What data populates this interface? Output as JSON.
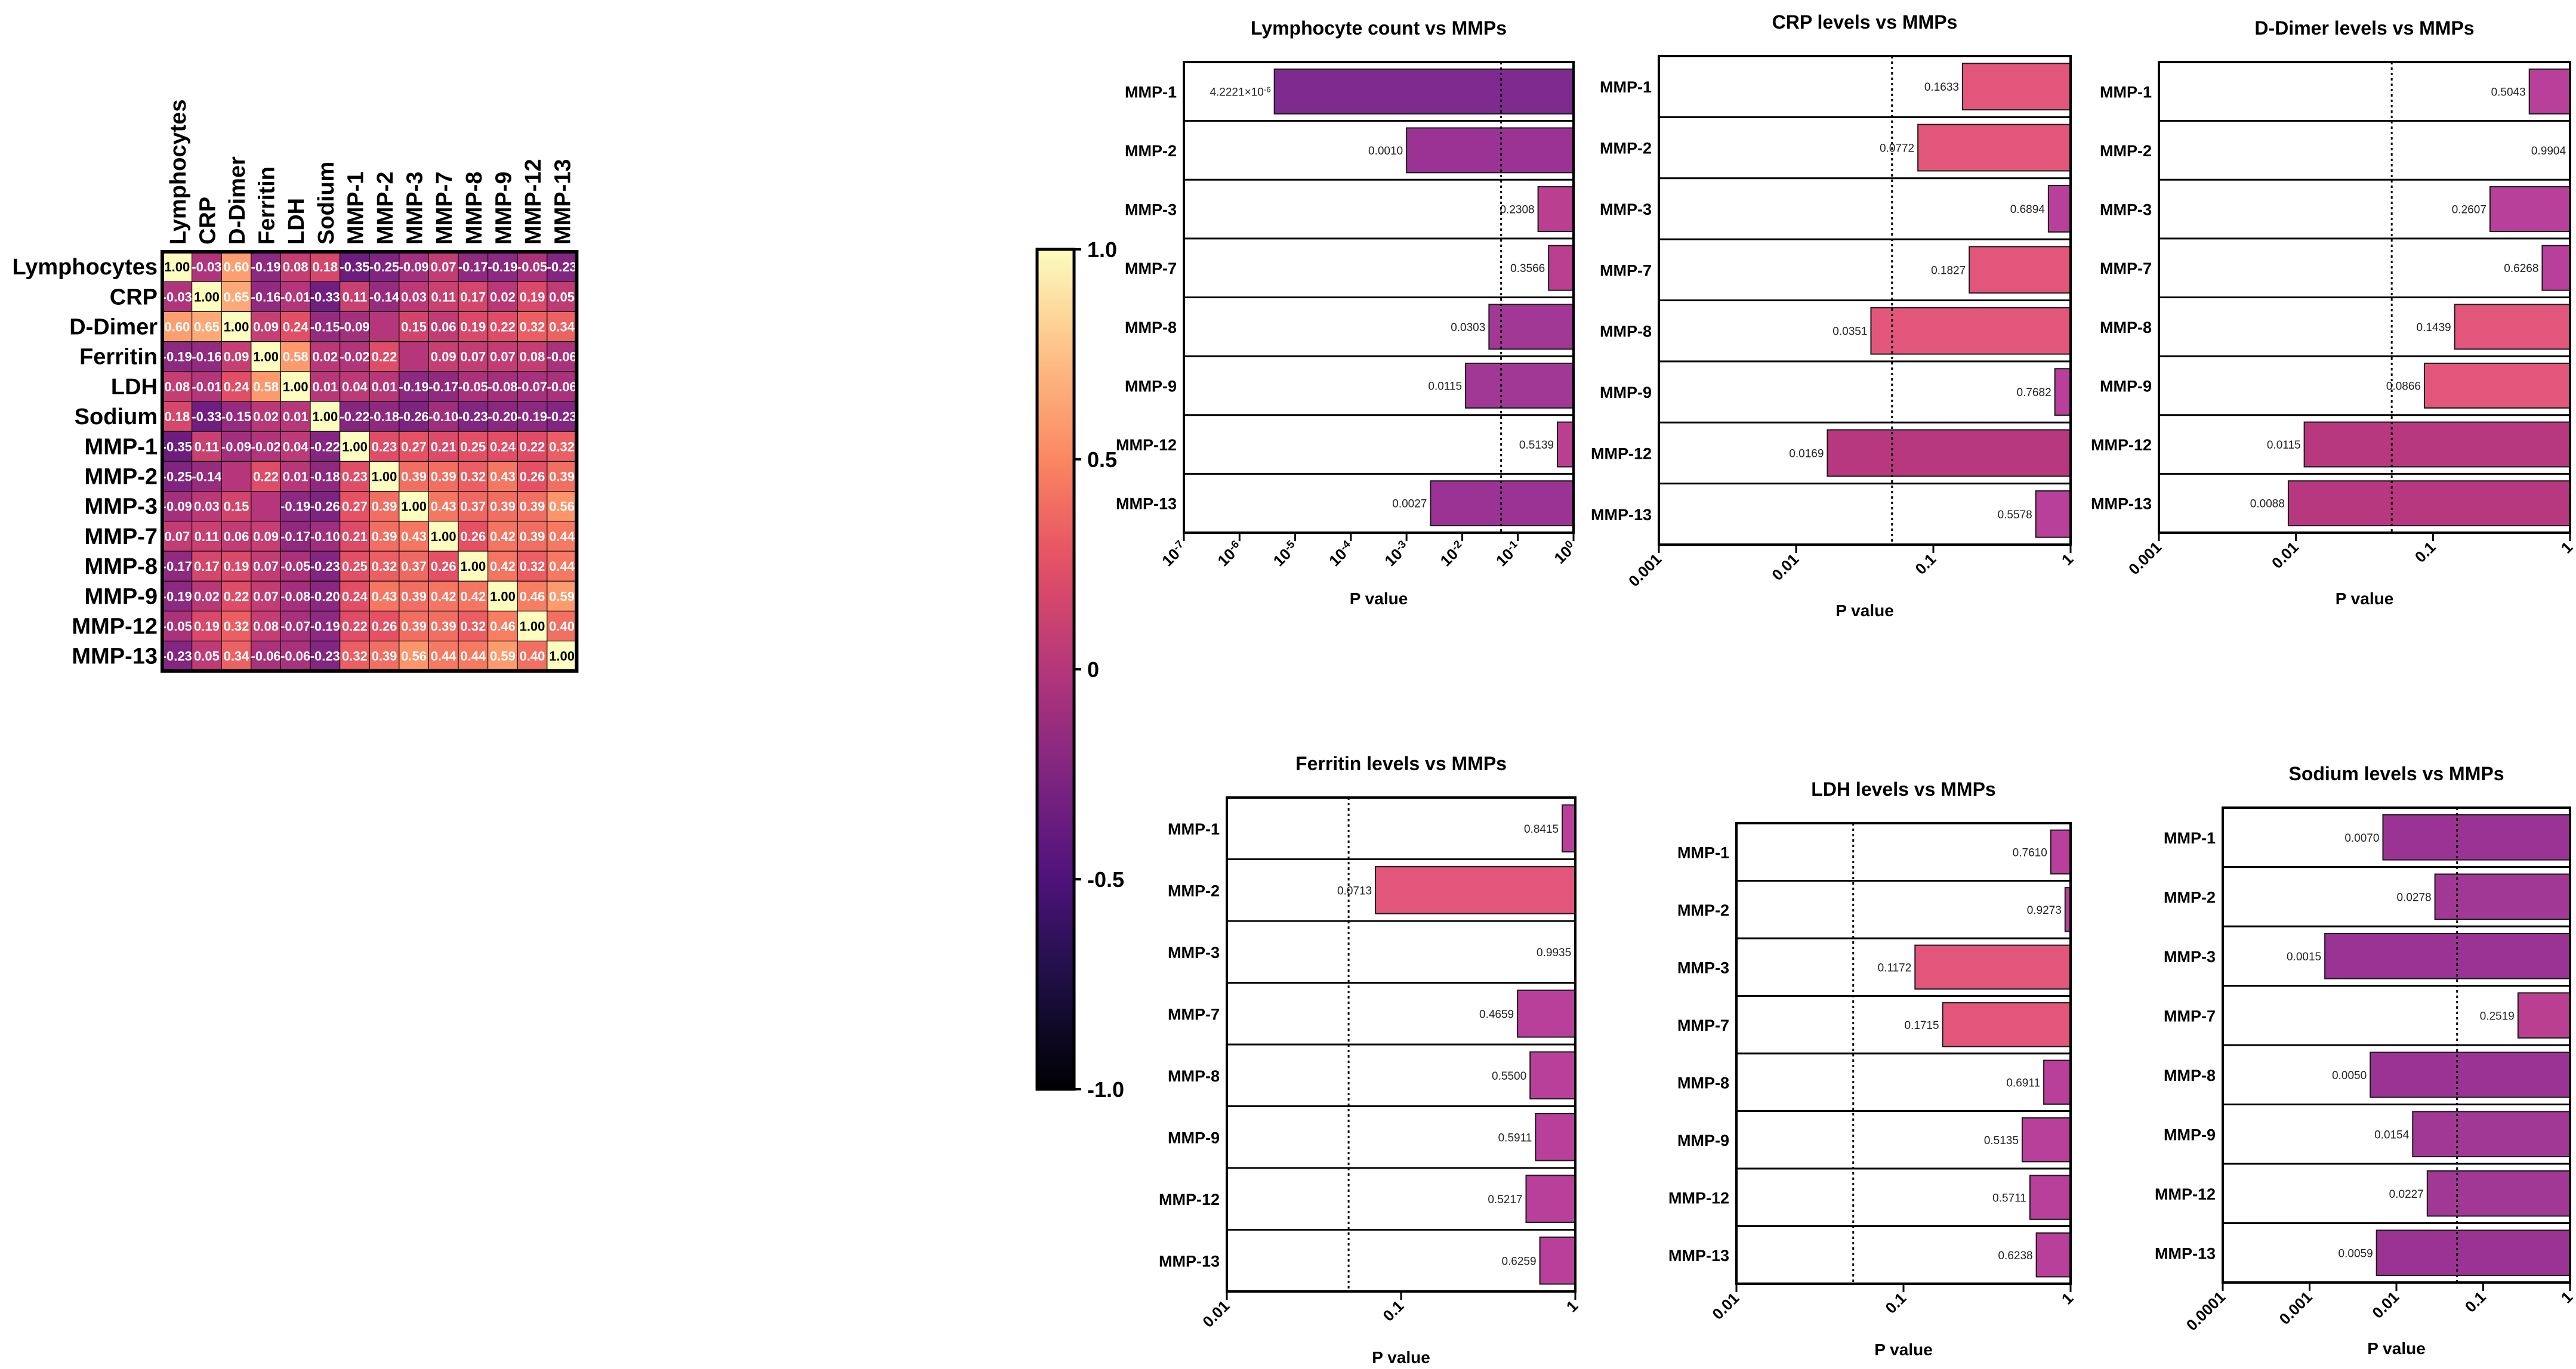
{
  "chart_data": [
    {
      "type": "heatmap",
      "title": "",
      "labels": [
        "Lymphocytes",
        "CRP",
        "D-Dimer",
        "Ferritin",
        "LDH",
        "Sodium",
        "MMP-1",
        "MMP-2",
        "MMP-3",
        "MMP-7",
        "MMP-8",
        "MMP-9",
        "MMP-12",
        "MMP-13"
      ],
      "values": [
        [
          1.0,
          -0.03,
          0.6,
          -0.19,
          0.08,
          0.18,
          -0.35,
          -0.25,
          -0.09,
          0.07,
          -0.17,
          -0.19,
          -0.05,
          -0.23
        ],
        [
          -0.03,
          1.0,
          0.65,
          -0.16,
          -0.01,
          -0.33,
          0.11,
          -0.14,
          0.03,
          0.11,
          0.17,
          0.02,
          0.19,
          0.05
        ],
        [
          0.6,
          0.65,
          1.0,
          0.09,
          0.24,
          -0.15,
          -0.09,
          null,
          0.15,
          0.06,
          0.19,
          0.22,
          0.32,
          0.34
        ],
        [
          -0.19,
          -0.16,
          0.09,
          1.0,
          0.58,
          0.02,
          -0.02,
          0.22,
          null,
          0.09,
          0.07,
          0.07,
          0.08,
          -0.06
        ],
        [
          0.08,
          -0.01,
          0.24,
          0.58,
          1.0,
          0.01,
          0.04,
          0.01,
          -0.19,
          -0.17,
          -0.05,
          -0.08,
          -0.07,
          -0.06
        ],
        [
          0.18,
          -0.33,
          -0.15,
          0.02,
          0.01,
          1.0,
          -0.22,
          -0.18,
          -0.26,
          -0.1,
          -0.23,
          -0.2,
          -0.19,
          -0.23
        ],
        [
          -0.35,
          0.11,
          -0.09,
          -0.02,
          0.04,
          -0.22,
          1.0,
          0.23,
          0.27,
          0.21,
          0.25,
          0.24,
          0.22,
          0.32
        ],
        [
          -0.25,
          -0.14,
          null,
          0.22,
          0.01,
          -0.18,
          0.23,
          1.0,
          0.39,
          0.39,
          0.32,
          0.43,
          0.26,
          0.39
        ],
        [
          -0.09,
          0.03,
          0.15,
          null,
          -0.19,
          -0.26,
          0.27,
          0.39,
          1.0,
          0.43,
          0.37,
          0.39,
          0.39,
          0.56
        ],
        [
          0.07,
          0.11,
          0.06,
          0.09,
          -0.17,
          -0.1,
          0.21,
          0.39,
          0.43,
          1.0,
          0.26,
          0.42,
          0.39,
          0.44
        ],
        [
          -0.17,
          0.17,
          0.19,
          0.07,
          -0.05,
          -0.23,
          0.25,
          0.32,
          0.37,
          0.26,
          1.0,
          0.42,
          0.32,
          0.44
        ],
        [
          -0.19,
          0.02,
          0.22,
          0.07,
          -0.08,
          -0.2,
          0.24,
          0.43,
          0.39,
          0.42,
          0.42,
          1.0,
          0.46,
          0.59
        ],
        [
          -0.05,
          0.19,
          0.32,
          0.08,
          -0.07,
          -0.19,
          0.22,
          0.26,
          0.39,
          0.39,
          0.32,
          0.46,
          1.0,
          0.4
        ],
        [
          -0.23,
          0.05,
          0.34,
          -0.06,
          -0.06,
          -0.23,
          0.32,
          0.39,
          0.56,
          0.44,
          0.44,
          0.59,
          0.4,
          1.0
        ]
      ],
      "colorbar": {
        "min": -1.0,
        "max": 1.0,
        "ticks": [
          "1.0",
          "0.5",
          "0",
          "-0.5",
          "-1.0"
        ]
      }
    },
    {
      "type": "bar",
      "orientation": "horizontal",
      "title": "Lymphocyte count vs MMPs",
      "xlabel": "P value",
      "xscale": "log",
      "xlim": [
        1e-07,
        1
      ],
      "threshold": 0.05,
      "tick_values": [
        1e-07,
        1e-06,
        1e-05,
        0.0001,
        0.001,
        0.01,
        0.1,
        1
      ],
      "tick_labels": [
        "10-7",
        "10-6",
        "10-5",
        "10-4",
        "10-3",
        "10-2",
        "10-1",
        "100"
      ],
      "categories": [
        "MMP-1",
        "MMP-2",
        "MMP-3",
        "MMP-7",
        "MMP-8",
        "MMP-9",
        "MMP-12",
        "MMP-13"
      ],
      "values": [
        4.2221e-06,
        0.001,
        0.2308,
        0.3566,
        0.0303,
        0.0115,
        0.5139,
        0.0027
      ],
      "value_labels": [
        "4.2221×10-6",
        "0.0010",
        "0.2308",
        "0.3566",
        "0.0303",
        "0.0115",
        "0.5139",
        "0.0027"
      ]
    },
    {
      "type": "bar",
      "orientation": "horizontal",
      "title": "CRP levels vs MMPs",
      "xlabel": "P value",
      "xscale": "log",
      "xlim": [
        0.001,
        1
      ],
      "threshold": 0.05,
      "tick_values": [
        0.001,
        0.01,
        0.1,
        1
      ],
      "tick_labels": [
        "0.001",
        "0.01",
        "0.1",
        "1"
      ],
      "categories": [
        "MMP-1",
        "MMP-2",
        "MMP-3",
        "MMP-7",
        "MMP-8",
        "MMP-9",
        "MMP-12",
        "MMP-13"
      ],
      "values": [
        0.1633,
        0.0772,
        0.6894,
        0.1827,
        0.0351,
        0.7682,
        0.0169,
        0.5578
      ],
      "value_labels": [
        "0.1633",
        "0.0772",
        "0.6894",
        "0.1827",
        "0.0351",
        "0.7682",
        "0.0169",
        "0.5578"
      ]
    },
    {
      "type": "bar",
      "orientation": "horizontal",
      "title": "D-Dimer levels vs MMPs",
      "xlabel": "P value",
      "xscale": "log",
      "xlim": [
        0.001,
        1
      ],
      "threshold": 0.05,
      "tick_values": [
        0.001,
        0.01,
        0.1,
        1
      ],
      "tick_labels": [
        "0.001",
        "0.01",
        "0.1",
        "1"
      ],
      "categories": [
        "MMP-1",
        "MMP-2",
        "MMP-3",
        "MMP-7",
        "MMP-8",
        "MMP-9",
        "MMP-12",
        "MMP-13"
      ],
      "values": [
        0.5043,
        0.9904,
        0.2607,
        0.6268,
        0.1439,
        0.0866,
        0.0115,
        0.0088
      ],
      "value_labels": [
        "0.5043",
        "0.9904",
        "0.2607",
        "0.6268",
        "0.1439",
        "0.0866",
        "0.0115",
        "0.0088"
      ]
    },
    {
      "type": "bar",
      "orientation": "horizontal",
      "title": "Ferritin levels vs MMPs",
      "xlabel": "P value",
      "xscale": "log",
      "xlim": [
        0.01,
        1
      ],
      "threshold": 0.05,
      "tick_values": [
        0.01,
        0.1,
        1
      ],
      "tick_labels": [
        "0.01",
        "0.1",
        "1"
      ],
      "categories": [
        "MMP-1",
        "MMP-2",
        "MMP-3",
        "MMP-7",
        "MMP-8",
        "MMP-9",
        "MMP-12",
        "MMP-13"
      ],
      "values": [
        0.8415,
        0.0713,
        0.9935,
        0.4659,
        0.55,
        0.5911,
        0.5217,
        0.6259
      ],
      "value_labels": [
        "0.8415",
        "0.0713",
        "0.9935",
        "0.4659",
        "0.5500",
        "0.5911",
        "0.5217",
        "0.6259"
      ]
    },
    {
      "type": "bar",
      "orientation": "horizontal",
      "title": "LDH levels vs MMPs",
      "xlabel": "P value",
      "xscale": "log",
      "xlim": [
        0.01,
        1
      ],
      "threshold": 0.05,
      "tick_values": [
        0.01,
        0.1,
        1
      ],
      "tick_labels": [
        "0.01",
        "0.1",
        "1"
      ],
      "categories": [
        "MMP-1",
        "MMP-2",
        "MMP-3",
        "MMP-7",
        "MMP-8",
        "MMP-9",
        "MMP-12",
        "MMP-13"
      ],
      "values": [
        0.761,
        0.9273,
        0.1172,
        0.1715,
        0.6911,
        0.5135,
        0.5711,
        0.6238
      ],
      "value_labels": [
        "0.7610",
        "0.9273",
        "0.1172",
        "0.1715",
        "0.6911",
        "0.5135",
        "0.5711",
        "0.6238"
      ]
    },
    {
      "type": "bar",
      "orientation": "horizontal",
      "title": "Sodium levels vs MMPs",
      "xlabel": "P value",
      "xscale": "log",
      "xlim": [
        0.0001,
        1
      ],
      "threshold": 0.05,
      "tick_values": [
        0.0001,
        0.001,
        0.01,
        0.1,
        1
      ],
      "tick_labels": [
        "0.0001",
        "0.001",
        "0.01",
        "0.1",
        "1"
      ],
      "categories": [
        "MMP-1",
        "MMP-2",
        "MMP-3",
        "MMP-7",
        "MMP-8",
        "MMP-9",
        "MMP-12",
        "MMP-13"
      ],
      "values": [
        0.007,
        0.0278,
        0.0015,
        0.2519,
        0.005,
        0.0154,
        0.0227,
        0.0059
      ],
      "value_labels": [
        "0.0070",
        "0.0278",
        "0.0015",
        "0.2519",
        "0.0050",
        "0.0154",
        "0.0227",
        "0.0059"
      ]
    }
  ]
}
